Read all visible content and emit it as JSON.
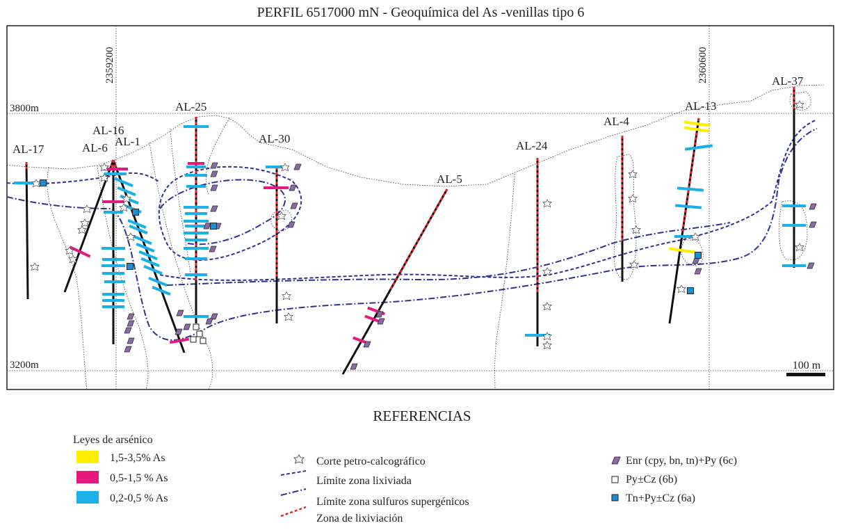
{
  "title": "PERFIL 6517000 mN - Geoquímica del As -venillas tipo 6",
  "grid": {
    "elevations": [
      "3800m",
      "3200m"
    ],
    "eastings": [
      "2359200",
      "2360600"
    ]
  },
  "scale": "100 m",
  "drillholes": [
    "AL-17",
    "AL-6",
    "AL-16",
    "AL-1",
    "AL-25",
    "AL-30",
    "AL-5",
    "AL-24",
    "AL-4",
    "AL-13",
    "AL-37"
  ],
  "references": {
    "heading": "REFERENCIAS",
    "grades_title": "Leyes de arsénico",
    "grades": [
      {
        "label": "1,5-3,5% As",
        "color": "#ffed00"
      },
      {
        "label": "0,5-1,5 % As",
        "color": "#e6197f"
      },
      {
        "label": "0,2-0,5 % As",
        "color": "#1bb1e7"
      }
    ],
    "symbols": [
      "Corte petro-calcográfico",
      "Límite zona lixiviada",
      "Límite zona sulfuros supergénicos",
      "Zona de lixiviación"
    ],
    "minerals": [
      "Enr (cpy, bn, tn)+Py (6c)",
      "Py±Cz (6b)",
      "Tn+Py±Cz (6a)"
    ]
  }
}
